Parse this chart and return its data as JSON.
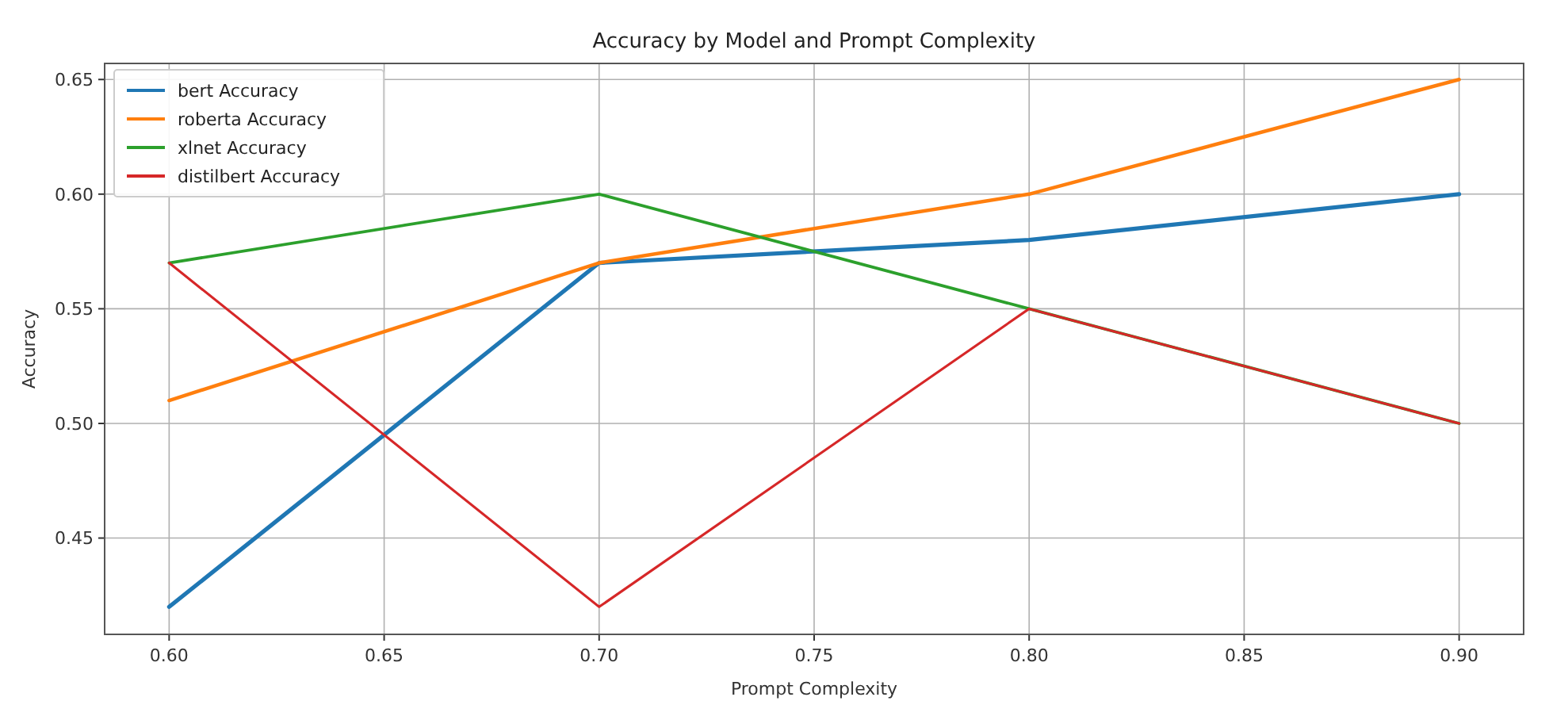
{
  "chart_data": {
    "type": "line",
    "title": "Accuracy by Model and Prompt Complexity",
    "xlabel": "Prompt Complexity",
    "ylabel": "Accuracy",
    "x": [
      0.6,
      0.7,
      0.8,
      0.9
    ],
    "series": [
      {
        "name": "bert Accuracy",
        "color": "#1f77b4",
        "values": [
          0.42,
          0.57,
          0.58,
          0.6
        ]
      },
      {
        "name": "roberta Accuracy",
        "color": "#ff7f0e",
        "values": [
          0.51,
          0.57,
          0.6,
          0.65
        ]
      },
      {
        "name": "xlnet Accuracy",
        "color": "#2ca02c",
        "values": [
          0.57,
          0.6,
          0.55,
          0.5
        ]
      },
      {
        "name": "distilbert Accuracy",
        "color": "#d62728",
        "values": [
          0.57,
          0.42,
          0.55,
          0.5
        ]
      }
    ],
    "xlim": [
      0.585,
      0.915
    ],
    "ylim": [
      0.408,
      0.657
    ],
    "xticks": [
      {
        "value": 0.6,
        "label": "0.60"
      },
      {
        "value": 0.65,
        "label": "0.65"
      },
      {
        "value": 0.7,
        "label": "0.70"
      },
      {
        "value": 0.75,
        "label": "0.75"
      },
      {
        "value": 0.8,
        "label": "0.80"
      },
      {
        "value": 0.85,
        "label": "0.85"
      },
      {
        "value": 0.9,
        "label": "0.90"
      }
    ],
    "yticks": [
      {
        "value": 0.45,
        "label": "0.45"
      },
      {
        "value": 0.5,
        "label": "0.50"
      },
      {
        "value": 0.55,
        "label": "0.55"
      },
      {
        "value": 0.6,
        "label": "0.60"
      },
      {
        "value": 0.65,
        "label": "0.65"
      }
    ],
    "grid": true,
    "legend": "top left",
    "marker": "none",
    "line_style": "solid"
  }
}
